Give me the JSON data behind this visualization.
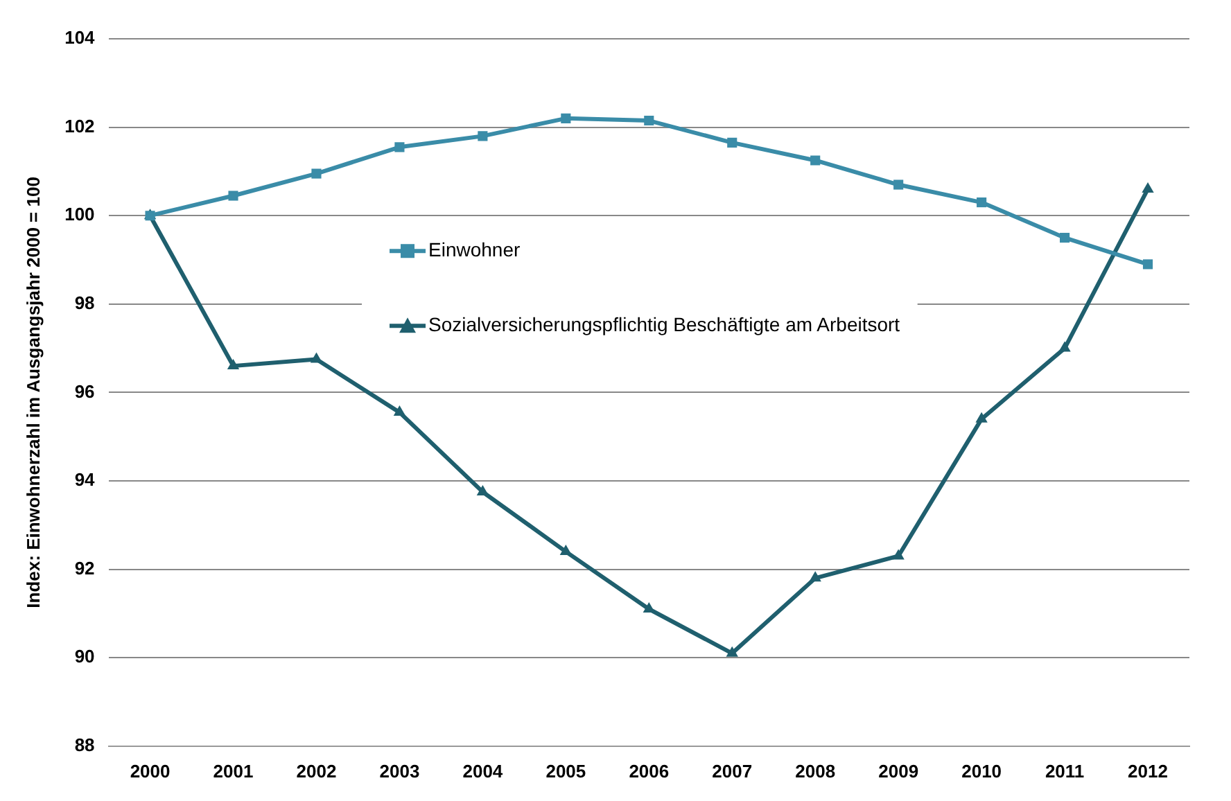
{
  "chart_data": {
    "type": "line",
    "ylabel": "Index: Einwohnerzahl im Ausgangsjahr 2000 = 100",
    "categories": [
      "2000",
      "2001",
      "2002",
      "2003",
      "2004",
      "2005",
      "2006",
      "2007",
      "2008",
      "2009",
      "2010",
      "2011",
      "2012"
    ],
    "series": [
      {
        "name": "Einwohner",
        "color": "#3a8ca8",
        "marker": "square",
        "values": [
          100,
          100.45,
          100.95,
          101.55,
          101.8,
          102.2,
          102.15,
          101.65,
          101.25,
          100.7,
          100.3,
          99.5,
          98.9
        ]
      },
      {
        "name": "Sozialversicherungspflichtig Beschäftigte am Arbeitsort",
        "color": "#1f5f6e",
        "marker": "triangle",
        "values": [
          100,
          96.6,
          96.75,
          95.55,
          93.75,
          92.4,
          91.1,
          90.1,
          91.8,
          92.3,
          95.4,
          97,
          100.6
        ]
      }
    ],
    "ylim": [
      88,
      104
    ],
    "yticks": [
      88,
      90,
      92,
      94,
      96,
      98,
      100,
      102,
      104
    ],
    "grid": "y",
    "legend": "top"
  }
}
